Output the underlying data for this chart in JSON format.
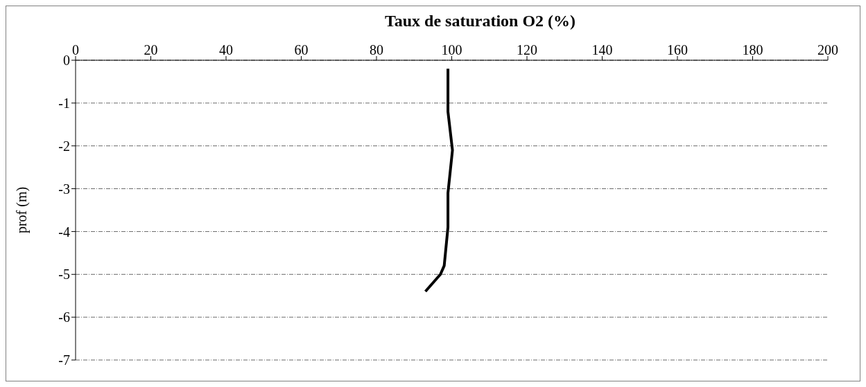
{
  "chart_data": {
    "type": "line",
    "xlabel": "Taux de saturation O2 (%)",
    "ylabel": "prof (m)",
    "series": [
      {
        "color": "#000000",
        "x": [
          99,
          99,
          100.2,
          99,
          99,
          98,
          97,
          93
        ],
        "values": [
          -0.2,
          -1.2,
          -2.1,
          -3.1,
          -3.9,
          -4.8,
          -5.0,
          -5.4
        ]
      }
    ],
    "xlim": [
      0,
      200
    ],
    "xticks": [
      0,
      20,
      40,
      60,
      80,
      100,
      120,
      140,
      160,
      180,
      200
    ],
    "ylim": [
      -7,
      0
    ],
    "yticks": [
      0,
      -1,
      -2,
      -3,
      -4,
      -5,
      -6,
      -7
    ],
    "grid": "y",
    "legend": false,
    "marker": "none",
    "line_style": "solid"
  }
}
